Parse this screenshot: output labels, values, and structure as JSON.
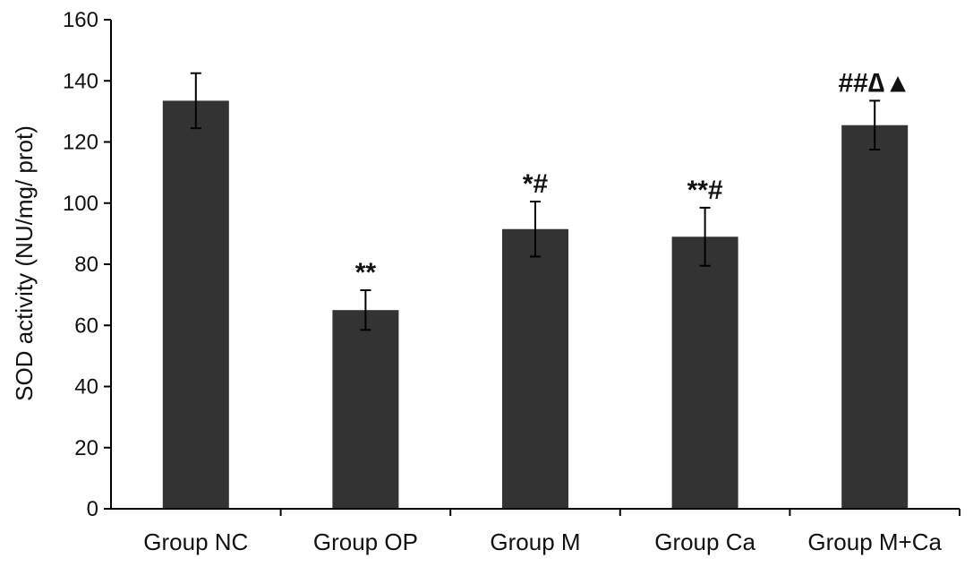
{
  "chart_data": {
    "type": "bar",
    "title": "",
    "xlabel": "",
    "ylabel": "SOD activity (NU/mg/ prot)",
    "ylim": [
      0,
      160
    ],
    "yticks": [
      0,
      20,
      40,
      60,
      80,
      100,
      120,
      140,
      160
    ],
    "grid": false,
    "legend": "none",
    "categories": [
      "Group NC",
      "Group OP",
      "Group M",
      "Group Ca",
      "Group M+Ca"
    ],
    "values": [
      133.5,
      65,
      91.5,
      89,
      125.5
    ],
    "errors": [
      9,
      6.5,
      9,
      9.5,
      8
    ],
    "significance": [
      "",
      "**",
      "*#",
      "**#",
      "##∆▲"
    ],
    "colors": {
      "bar": "#333333",
      "axis": "#000000"
    }
  }
}
